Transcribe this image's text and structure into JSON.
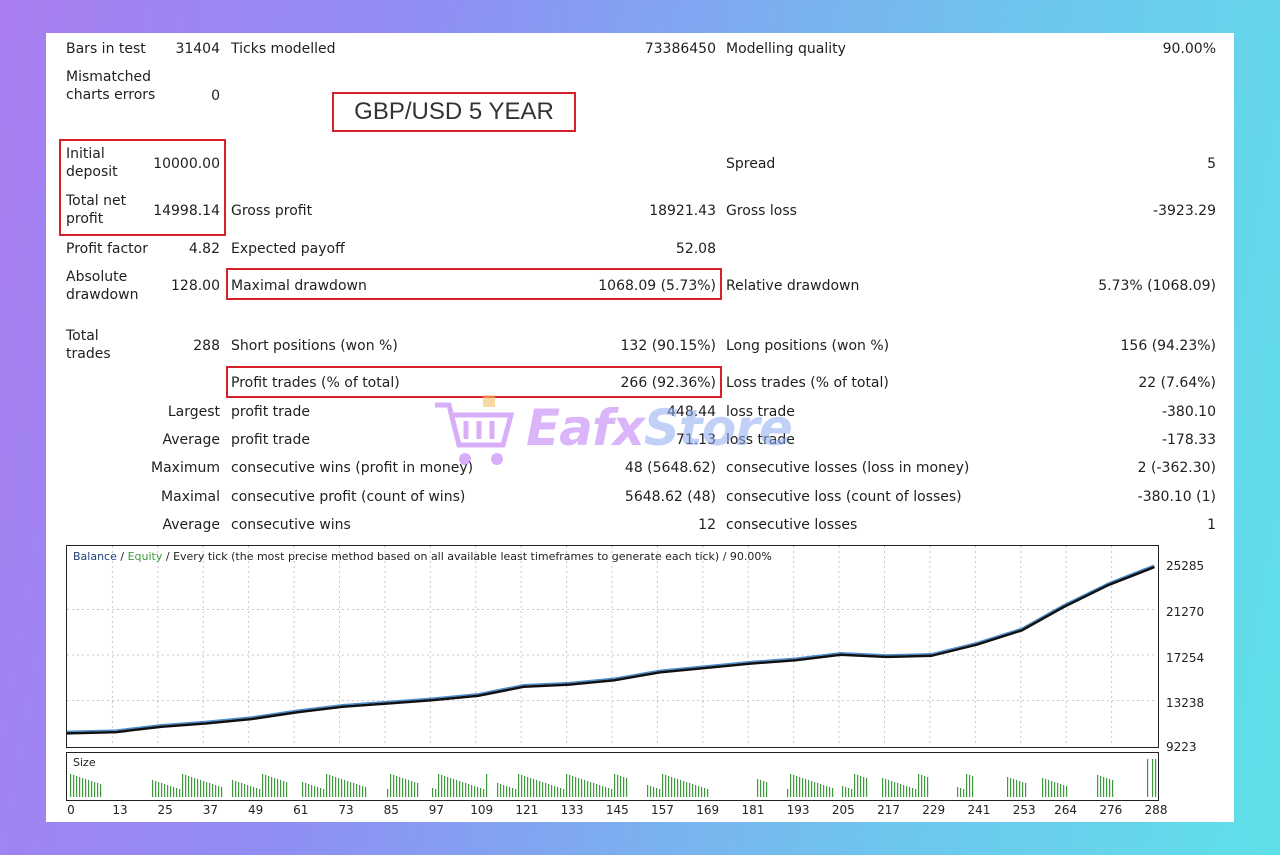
{
  "title_box": "GBP/USD 5 YEAR",
  "stats": {
    "bars_in_test": {
      "label": "Bars in test",
      "value": "31404"
    },
    "ticks_modelled": {
      "label": "Ticks modelled",
      "value": "73386450"
    },
    "modelling_quality": {
      "label": "Modelling quality",
      "value": "90.00%"
    },
    "mismatched": {
      "label": "Mismatched charts errors",
      "value": "0"
    },
    "initial_deposit": {
      "label": "Initial deposit",
      "value": "10000.00"
    },
    "spread": {
      "label": "Spread",
      "value": "5"
    },
    "total_net_profit": {
      "label": "Total net profit",
      "value": "14998.14"
    },
    "gross_profit": {
      "label": "Gross profit",
      "value": "18921.43"
    },
    "gross_loss": {
      "label": "Gross loss",
      "value": "-3923.29"
    },
    "profit_factor": {
      "label": "Profit factor",
      "value": "4.82"
    },
    "expected_payoff": {
      "label": "Expected payoff",
      "value": "52.08"
    },
    "absolute_drawdown": {
      "label": "Absolute drawdown",
      "value": "128.00"
    },
    "maximal_drawdown": {
      "label": "Maximal drawdown",
      "value": "1068.09 (5.73%)"
    },
    "relative_drawdown": {
      "label": "Relative drawdown",
      "value": "5.73% (1068.09)"
    },
    "total_trades": {
      "label": "Total trades",
      "value": "288"
    },
    "short_positions": {
      "label": "Short positions (won %)",
      "value": "132 (90.15%)"
    },
    "long_positions": {
      "label": "Long positions (won %)",
      "value": "156 (94.23%)"
    },
    "profit_trades": {
      "label": "Profit trades (% of total)",
      "value": "266 (92.36%)"
    },
    "loss_trades": {
      "label": "Loss trades (% of total)",
      "value": "22 (7.64%)"
    },
    "largest": {
      "prefix": "Largest",
      "profit_label": "profit trade",
      "profit_value": "448.44",
      "loss_label": "loss trade",
      "loss_value": "-380.10"
    },
    "average": {
      "prefix": "Average",
      "profit_label": "profit trade",
      "profit_value": "71.13",
      "loss_label": "loss trade",
      "loss_value": "-178.33"
    },
    "maximum": {
      "prefix": "Maximum",
      "profit_label": "consecutive wins (profit in money)",
      "profit_value": "48 (5648.62)",
      "loss_label": "consecutive losses (loss in money)",
      "loss_value": "2 (-362.30)"
    },
    "maximal": {
      "prefix": "Maximal",
      "profit_label": "consecutive profit (count of wins)",
      "profit_value": "5648.62 (48)",
      "loss_label": "consecutive loss (count of losses)",
      "loss_value": "-380.10 (1)"
    },
    "average_consecutive": {
      "prefix": "Average",
      "profit_label": "consecutive wins",
      "profit_value": "12",
      "loss_label": "consecutive losses",
      "loss_value": "1"
    }
  },
  "watermark": {
    "part1": "Eafx",
    "part2": "Store"
  },
  "chart_data": {
    "type": "line",
    "legend": {
      "balance": "Balance",
      "equity": "Equity",
      "rest": " / Every tick (the most precise method based on all available least timeframes to generate each tick) / 90.00%"
    },
    "series": [
      {
        "name": "Balance",
        "color": "#111111"
      },
      {
        "name": "Equity",
        "color": "#4a8fd0"
      }
    ],
    "x": [
      0,
      13,
      25,
      37,
      49,
      61,
      73,
      85,
      97,
      109,
      121,
      133,
      145,
      157,
      169,
      181,
      193,
      205,
      217,
      229,
      241,
      253,
      264,
      276,
      288
    ],
    "balance": [
      10000,
      10120,
      10600,
      10900,
      11300,
      11900,
      12400,
      12700,
      13000,
      13400,
      14200,
      14400,
      14800,
      15500,
      15900,
      16300,
      16600,
      17100,
      16900,
      17000,
      18000,
      19300,
      21400,
      23400,
      24998
    ],
    "y_ticks": [
      "25285",
      "21270",
      "17254",
      "13238",
      "9223"
    ],
    "ylim": [
      9223,
      25285
    ],
    "x_ticks": [
      "0",
      "13",
      "25",
      "37",
      "49",
      "61",
      "73",
      "85",
      "97",
      "109",
      "121",
      "133",
      "145",
      "157",
      "169",
      "181",
      "193",
      "205",
      "217",
      "229",
      "241",
      "253",
      "264",
      "276",
      "288"
    ],
    "grid": true,
    "size_label": "Size"
  },
  "colors": {
    "highlight": "#d8202a",
    "balance": "#111111",
    "equity": "#4a8fd0",
    "size_bars": "#3c9a3c"
  }
}
